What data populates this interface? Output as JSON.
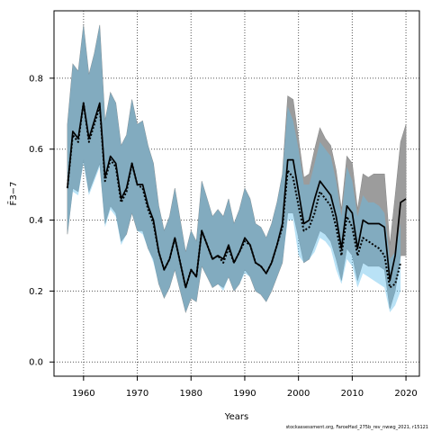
{
  "chart_data": {
    "type": "line",
    "xlabel": "Years",
    "ylabel": "F̄3−7",
    "xlim": [
      1954.5,
      2022.5
    ],
    "ylim": [
      -0.04,
      0.99
    ],
    "xticks": [
      1960,
      1970,
      1980,
      1990,
      2000,
      2010,
      2020
    ],
    "yticks": [
      0.0,
      0.2,
      0.4,
      0.6,
      0.8
    ],
    "ytick_labels": [
      "0.0",
      "0.2",
      "0.4",
      "0.6",
      "0.8"
    ],
    "grid": true,
    "x": [
      1957,
      1958,
      1959,
      1960,
      1961,
      1962,
      1963,
      1964,
      1965,
      1966,
      1967,
      1968,
      1969,
      1970,
      1971,
      1972,
      1973,
      1974,
      1975,
      1976,
      1977,
      1978,
      1979,
      1980,
      1981,
      1982,
      1983,
      1984,
      1985,
      1986,
      1987,
      1988,
      1989,
      1990,
      1991,
      1992,
      1993,
      1994,
      1995,
      1996,
      1997,
      1998,
      1999,
      2000,
      2001,
      2002,
      2003,
      2004,
      2005,
      2006,
      2007,
      2008,
      2009,
      2010,
      2011,
      2012,
      2013,
      2014,
      2015,
      2016,
      2017,
      2018,
      2019,
      2020
    ],
    "series": [
      {
        "role": "model-estimate",
        "color": "#000000",
        "line_style": "solid",
        "values": [
          0.49,
          0.65,
          0.63,
          0.73,
          0.63,
          0.68,
          0.73,
          0.52,
          0.58,
          0.56,
          0.46,
          0.49,
          0.56,
          0.5,
          0.5,
          0.44,
          0.4,
          0.31,
          0.26,
          0.29,
          0.35,
          0.28,
          0.21,
          0.26,
          0.24,
          0.37,
          0.33,
          0.29,
          0.3,
          0.29,
          0.33,
          0.28,
          0.31,
          0.35,
          0.33,
          0.28,
          0.27,
          0.25,
          0.28,
          0.33,
          0.39,
          0.57,
          0.57,
          0.48,
          0.39,
          0.4,
          0.46,
          0.51,
          0.49,
          0.47,
          0.41,
          0.32,
          0.44,
          0.42,
          0.32,
          0.4,
          0.39,
          0.39,
          0.39,
          0.38,
          0.23,
          0.3,
          0.45,
          0.46
        ],
        "lower": [
          0.36,
          0.49,
          0.48,
          0.57,
          0.48,
          0.52,
          0.56,
          0.39,
          0.44,
          0.42,
          0.34,
          0.36,
          0.42,
          0.37,
          0.37,
          0.32,
          0.29,
          0.22,
          0.18,
          0.21,
          0.26,
          0.2,
          0.14,
          0.18,
          0.17,
          0.27,
          0.24,
          0.21,
          0.22,
          0.21,
          0.24,
          0.2,
          0.22,
          0.26,
          0.24,
          0.2,
          0.19,
          0.17,
          0.2,
          0.24,
          0.28,
          0.42,
          0.42,
          0.35,
          0.28,
          0.29,
          0.33,
          0.37,
          0.36,
          0.34,
          0.29,
          0.23,
          0.32,
          0.3,
          0.23,
          0.28,
          0.27,
          0.27,
          0.27,
          0.26,
          0.15,
          0.2,
          0.3,
          0.3
        ],
        "upper": [
          0.67,
          0.84,
          0.82,
          0.95,
          0.81,
          0.87,
          0.95,
          0.68,
          0.76,
          0.73,
          0.61,
          0.64,
          0.74,
          0.67,
          0.68,
          0.61,
          0.56,
          0.44,
          0.37,
          0.41,
          0.49,
          0.4,
          0.31,
          0.37,
          0.34,
          0.51,
          0.46,
          0.41,
          0.43,
          0.41,
          0.46,
          0.39,
          0.43,
          0.49,
          0.46,
          0.39,
          0.38,
          0.35,
          0.39,
          0.45,
          0.53,
          0.75,
          0.74,
          0.63,
          0.52,
          0.53,
          0.6,
          0.66,
          0.63,
          0.61,
          0.54,
          0.43,
          0.58,
          0.56,
          0.43,
          0.53,
          0.52,
          0.53,
          0.53,
          0.53,
          0.33,
          0.47,
          0.62,
          0.67
        ],
        "band_color": "#9c9c9c"
      },
      {
        "role": "alternative-estimate",
        "color": "#000000",
        "line_style": "dotted",
        "values": [
          0.49,
          0.64,
          0.62,
          0.73,
          0.62,
          0.67,
          0.72,
          0.51,
          0.57,
          0.55,
          0.45,
          0.48,
          0.56,
          0.5,
          0.49,
          0.43,
          0.39,
          0.31,
          0.26,
          0.29,
          0.35,
          0.28,
          0.21,
          0.26,
          0.24,
          0.37,
          0.33,
          0.29,
          0.3,
          0.28,
          0.32,
          0.28,
          0.31,
          0.34,
          0.33,
          0.28,
          0.27,
          0.25,
          0.28,
          0.33,
          0.38,
          0.54,
          0.52,
          0.44,
          0.37,
          0.38,
          0.42,
          0.48,
          0.46,
          0.44,
          0.38,
          0.3,
          0.41,
          0.38,
          0.3,
          0.35,
          0.34,
          0.33,
          0.32,
          0.3,
          0.21,
          0.22,
          0.28,
          null
        ],
        "lower": [
          0.36,
          0.48,
          0.47,
          0.56,
          0.47,
          0.51,
          0.55,
          0.38,
          0.43,
          0.41,
          0.33,
          0.36,
          0.42,
          0.37,
          0.36,
          0.32,
          0.28,
          0.22,
          0.18,
          0.21,
          0.26,
          0.2,
          0.14,
          0.18,
          0.17,
          0.27,
          0.24,
          0.21,
          0.22,
          0.2,
          0.24,
          0.2,
          0.22,
          0.25,
          0.24,
          0.2,
          0.19,
          0.17,
          0.2,
          0.24,
          0.28,
          0.4,
          0.4,
          0.3,
          0.28,
          0.29,
          0.31,
          0.35,
          0.34,
          0.32,
          0.26,
          0.22,
          0.29,
          0.27,
          0.21,
          0.25,
          0.24,
          0.23,
          0.22,
          0.21,
          0.14,
          0.16,
          0.2,
          null
        ],
        "upper": [
          0.67,
          0.84,
          0.82,
          0.95,
          0.81,
          0.87,
          0.95,
          0.68,
          0.76,
          0.73,
          0.61,
          0.64,
          0.74,
          0.67,
          0.68,
          0.61,
          0.56,
          0.44,
          0.37,
          0.41,
          0.49,
          0.4,
          0.31,
          0.37,
          0.34,
          0.51,
          0.46,
          0.41,
          0.43,
          0.41,
          0.46,
          0.39,
          0.43,
          0.49,
          0.46,
          0.39,
          0.38,
          0.35,
          0.39,
          0.45,
          0.53,
          0.72,
          0.68,
          0.6,
          0.5,
          0.5,
          0.56,
          0.62,
          0.6,
          0.58,
          0.51,
          0.41,
          0.55,
          0.51,
          0.41,
          0.47,
          0.45,
          0.45,
          0.44,
          0.42,
          0.29,
          0.31,
          0.39,
          null
        ],
        "band_color": "rgba(100,190,235,0.45)"
      }
    ]
  },
  "footer_text": "stockassessment.org, FaroeHad_275b_rev_nwwg_2021, r15121"
}
